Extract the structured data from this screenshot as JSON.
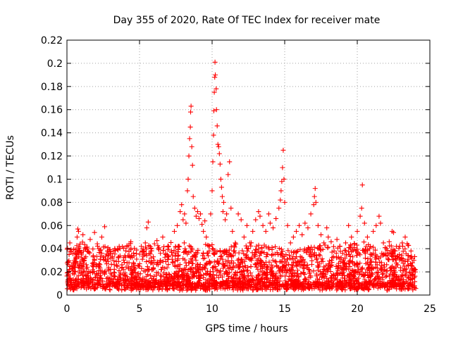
{
  "chart_data": {
    "type": "scatter",
    "title": "Day 355 of 2020, Rate Of TEC Index for receiver mate",
    "xlabel": "GPS time / hours",
    "ylabel": "ROTI / TECUs",
    "xlim": [
      0,
      25
    ],
    "ylim": [
      0,
      0.22
    ],
    "grid": true,
    "marker": "+",
    "color": "#ff0000",
    "x_ticks": [
      0,
      5,
      10,
      15,
      20,
      25
    ],
    "x_tick_labels": [
      "0",
      "5",
      "10",
      "15",
      "20",
      "25"
    ],
    "y_ticks": [
      0,
      0.02,
      0.04,
      0.06,
      0.08,
      0.1,
      0.12,
      0.14,
      0.16,
      0.18,
      0.2,
      0.22
    ],
    "y_tick_labels": [
      "0",
      "0.02",
      "0.04",
      "0.06",
      "0.08",
      "0.1",
      "0.12",
      "0.14",
      "0.16",
      "0.18",
      "0.2",
      "0.22"
    ],
    "series": [
      {
        "name": "ROTI",
        "points": [
          [
            0.05,
            0.012
          ],
          [
            0.1,
            0.028
          ],
          [
            0.15,
            0.035
          ],
          [
            0.2,
            0.045
          ],
          [
            0.3,
            0.038
          ],
          [
            0.4,
            0.025
          ],
          [
            0.5,
            0.018
          ],
          [
            0.6,
            0.032
          ],
          [
            0.7,
            0.05
          ],
          [
            0.75,
            0.057
          ],
          [
            0.8,
            0.055
          ],
          [
            0.9,
            0.044
          ],
          [
            1.0,
            0.036
          ],
          [
            1.1,
            0.052
          ],
          [
            1.2,
            0.03
          ],
          [
            1.4,
            0.024
          ],
          [
            1.6,
            0.048
          ],
          [
            1.8,
            0.033
          ],
          [
            1.9,
            0.054
          ],
          [
            2.0,
            0.026
          ],
          [
            2.2,
            0.04
          ],
          [
            2.4,
            0.05
          ],
          [
            2.6,
            0.059
          ],
          [
            2.8,
            0.031
          ],
          [
            3.0,
            0.022
          ],
          [
            3.2,
            0.038
          ],
          [
            3.4,
            0.029
          ],
          [
            3.6,
            0.042
          ],
          [
            3.8,
            0.024
          ],
          [
            4.0,
            0.019
          ],
          [
            4.2,
            0.034
          ],
          [
            4.4,
            0.046
          ],
          [
            4.6,
            0.027
          ],
          [
            4.8,
            0.031
          ],
          [
            5.0,
            0.025
          ],
          [
            5.2,
            0.037
          ],
          [
            5.4,
            0.045
          ],
          [
            5.5,
            0.058
          ],
          [
            5.6,
            0.063
          ],
          [
            5.8,
            0.04
          ],
          [
            6.0,
            0.03
          ],
          [
            6.2,
            0.047
          ],
          [
            6.4,
            0.028
          ],
          [
            6.6,
            0.05
          ],
          [
            6.8,
            0.035
          ],
          [
            7.0,
            0.042
          ],
          [
            7.2,
            0.038
          ],
          [
            7.4,
            0.055
          ],
          [
            7.6,
            0.06
          ],
          [
            7.8,
            0.072
          ],
          [
            7.9,
            0.078
          ],
          [
            8.0,
            0.065
          ],
          [
            8.1,
            0.07
          ],
          [
            8.2,
            0.062
          ],
          [
            8.3,
            0.09
          ],
          [
            8.35,
            0.1
          ],
          [
            8.4,
            0.12
          ],
          [
            8.45,
            0.135
          ],
          [
            8.5,
            0.145
          ],
          [
            8.52,
            0.158
          ],
          [
            8.55,
            0.163
          ],
          [
            8.6,
            0.128
          ],
          [
            8.65,
            0.112
          ],
          [
            8.7,
            0.085
          ],
          [
            8.8,
            0.075
          ],
          [
            8.9,
            0.068
          ],
          [
            9.0,
            0.072
          ],
          [
            9.1,
            0.066
          ],
          [
            9.2,
            0.07
          ],
          [
            9.3,
            0.061
          ],
          [
            9.4,
            0.055
          ],
          [
            9.5,
            0.064
          ],
          [
            9.6,
            0.05
          ],
          [
            9.7,
            0.043
          ],
          [
            9.8,
            0.038
          ],
          [
            9.9,
            0.07
          ],
          [
            10.0,
            0.09
          ],
          [
            10.05,
            0.115
          ],
          [
            10.1,
            0.138
          ],
          [
            10.12,
            0.159
          ],
          [
            10.15,
            0.175
          ],
          [
            10.18,
            0.188
          ],
          [
            10.2,
            0.201
          ],
          [
            10.22,
            0.19
          ],
          [
            10.28,
            0.178
          ],
          [
            10.3,
            0.16
          ],
          [
            10.35,
            0.146
          ],
          [
            10.4,
            0.13
          ],
          [
            10.45,
            0.128
          ],
          [
            10.5,
            0.122
          ],
          [
            10.55,
            0.113
          ],
          [
            10.6,
            0.1
          ],
          [
            10.65,
            0.093
          ],
          [
            10.7,
            0.085
          ],
          [
            10.75,
            0.072
          ],
          [
            10.8,
            0.08
          ],
          [
            10.9,
            0.065
          ],
          [
            11.0,
            0.07
          ],
          [
            11.1,
            0.104
          ],
          [
            11.2,
            0.115
          ],
          [
            11.3,
            0.075
          ],
          [
            11.4,
            0.055
          ],
          [
            11.6,
            0.045
          ],
          [
            11.8,
            0.07
          ],
          [
            12.0,
            0.065
          ],
          [
            12.2,
            0.05
          ],
          [
            12.4,
            0.06
          ],
          [
            12.6,
            0.045
          ],
          [
            12.8,
            0.055
          ],
          [
            13.0,
            0.065
          ],
          [
            13.2,
            0.072
          ],
          [
            13.3,
            0.068
          ],
          [
            13.5,
            0.06
          ],
          [
            13.7,
            0.055
          ],
          [
            13.9,
            0.07
          ],
          [
            14.0,
            0.062
          ],
          [
            14.2,
            0.058
          ],
          [
            14.4,
            0.066
          ],
          [
            14.6,
            0.075
          ],
          [
            14.7,
            0.082
          ],
          [
            14.75,
            0.09
          ],
          [
            14.8,
            0.098
          ],
          [
            14.85,
            0.11
          ],
          [
            14.9,
            0.125
          ],
          [
            14.95,
            0.1
          ],
          [
            15.0,
            0.08
          ],
          [
            15.2,
            0.06
          ],
          [
            15.4,
            0.045
          ],
          [
            15.6,
            0.05
          ],
          [
            15.8,
            0.055
          ],
          [
            16.0,
            0.06
          ],
          [
            16.2,
            0.052
          ],
          [
            16.4,
            0.062
          ],
          [
            16.6,
            0.058
          ],
          [
            16.8,
            0.07
          ],
          [
            17.0,
            0.078
          ],
          [
            17.05,
            0.085
          ],
          [
            17.1,
            0.092
          ],
          [
            17.15,
            0.08
          ],
          [
            17.3,
            0.06
          ],
          [
            17.5,
            0.052
          ],
          [
            17.7,
            0.045
          ],
          [
            17.9,
            0.058
          ],
          [
            18.0,
            0.05
          ],
          [
            18.2,
            0.046
          ],
          [
            18.4,
            0.038
          ],
          [
            18.6,
            0.048
          ],
          [
            18.8,
            0.042
          ],
          [
            19.0,
            0.036
          ],
          [
            19.2,
            0.045
          ],
          [
            19.4,
            0.06
          ],
          [
            19.6,
            0.05
          ],
          [
            19.8,
            0.041
          ],
          [
            20.0,
            0.055
          ],
          [
            20.2,
            0.068
          ],
          [
            20.3,
            0.075
          ],
          [
            20.35,
            0.095
          ],
          [
            20.5,
            0.062
          ],
          [
            20.7,
            0.05
          ],
          [
            20.9,
            0.042
          ],
          [
            21.1,
            0.055
          ],
          [
            21.3,
            0.06
          ],
          [
            21.5,
            0.068
          ],
          [
            21.6,
            0.062
          ],
          [
            21.8,
            0.045
          ],
          [
            22.0,
            0.04
          ],
          [
            22.2,
            0.046
          ],
          [
            22.4,
            0.055
          ],
          [
            22.5,
            0.054
          ],
          [
            22.7,
            0.042
          ],
          [
            22.9,
            0.035
          ],
          [
            23.1,
            0.045
          ],
          [
            23.3,
            0.05
          ],
          [
            23.5,
            0.043
          ],
          [
            23.7,
            0.038
          ],
          [
            23.9,
            0.03
          ],
          [
            24.0,
            0.022
          ]
        ]
      }
    ]
  }
}
